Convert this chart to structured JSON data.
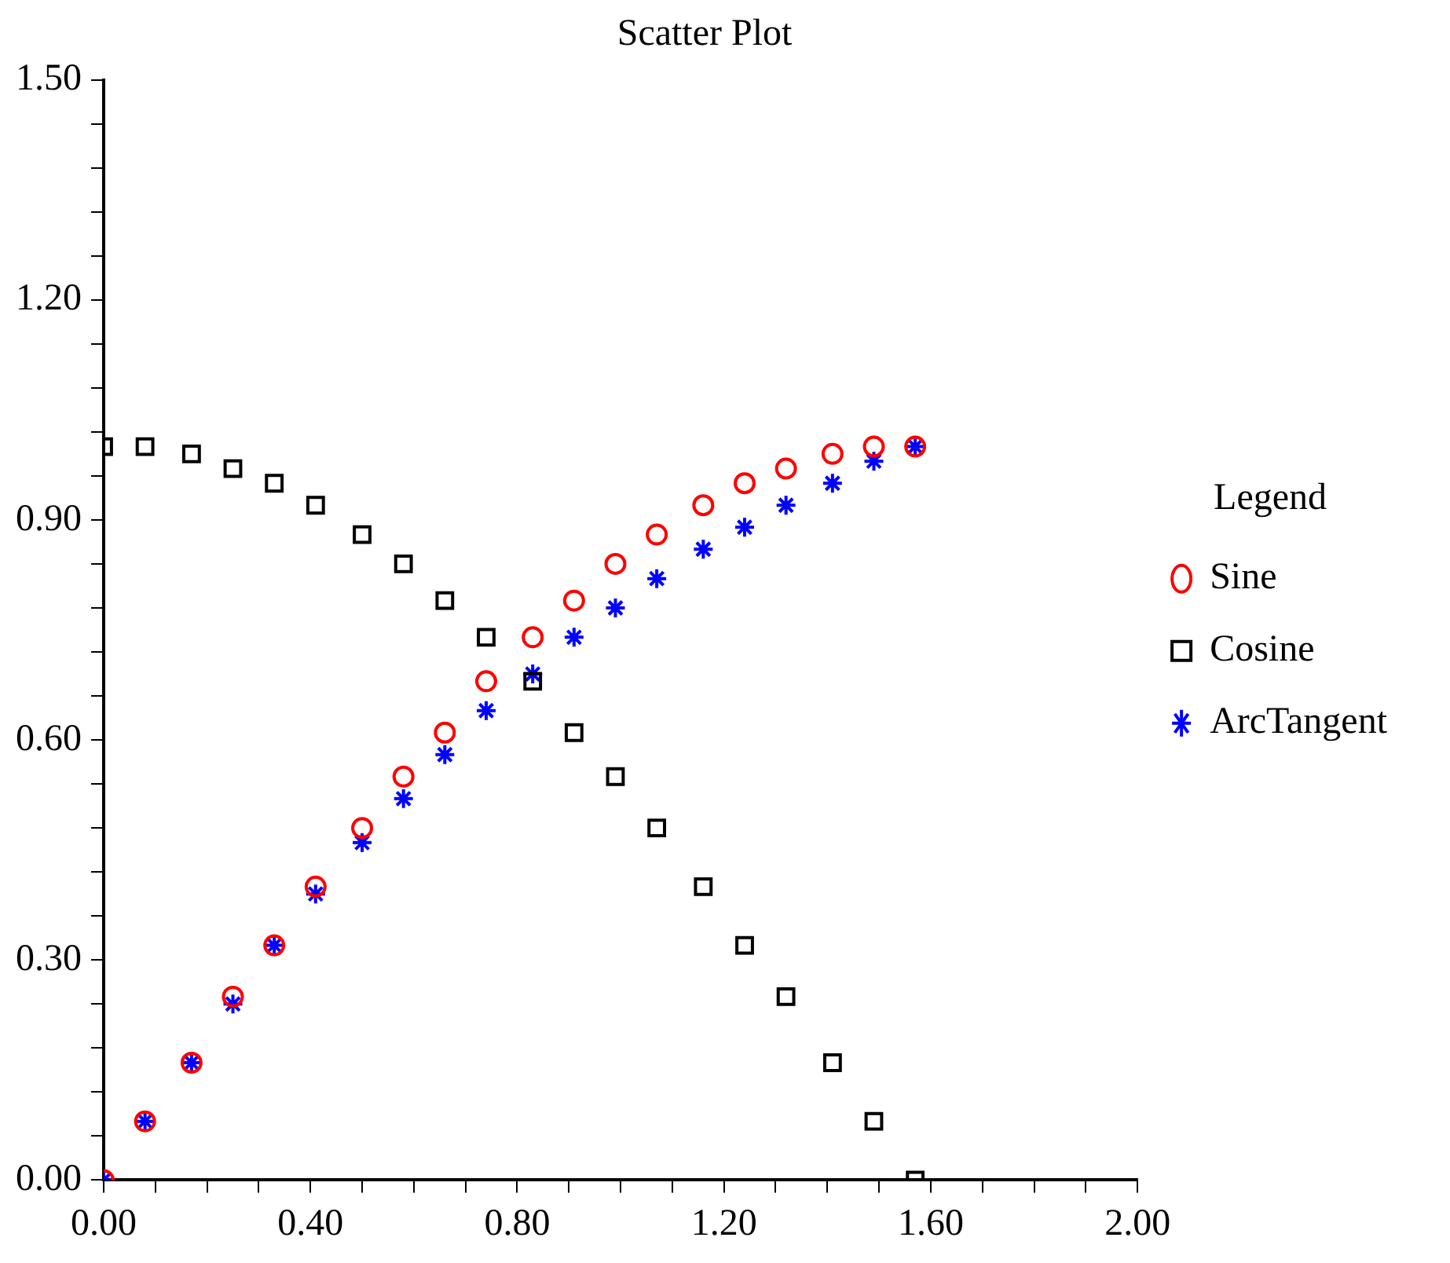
{
  "chart_data": {
    "type": "scatter",
    "title": "Scatter Plot",
    "legend_title": "Legend",
    "legend": "right",
    "grid": false,
    "x": [
      0,
      0.08,
      0.17,
      0.25,
      0.33,
      0.41,
      0.5,
      0.58,
      0.66,
      0.74,
      0.83,
      0.91,
      0.99,
      1.07,
      1.16,
      1.24,
      1.32,
      1.41,
      1.49,
      1.57
    ],
    "series": [
      {
        "name": "Sine",
        "color": "#ff0000",
        "marker": "circle",
        "values": [
          0,
          0.08,
          0.16,
          0.25,
          0.32,
          0.4,
          0.48,
          0.55,
          0.61,
          0.68,
          0.74,
          0.79,
          0.84,
          0.88,
          0.92,
          0.95,
          0.97,
          0.99,
          1.0,
          1.0
        ]
      },
      {
        "name": "Cosine",
        "color": "#000000",
        "marker": "square",
        "values": [
          1.0,
          1.0,
          0.99,
          0.97,
          0.95,
          0.92,
          0.88,
          0.84,
          0.79,
          0.74,
          0.68,
          0.61,
          0.55,
          0.48,
          0.4,
          0.32,
          0.25,
          0.16,
          0.08,
          0
        ]
      },
      {
        "name": "ArcTangent",
        "color": "#0000ff",
        "marker": "cross",
        "values": [
          0,
          0.08,
          0.16,
          0.24,
          0.32,
          0.39,
          0.46,
          0.52,
          0.58,
          0.64,
          0.69,
          0.74,
          0.78,
          0.82,
          0.86,
          0.89,
          0.92,
          0.95,
          0.98,
          1.0
        ]
      }
    ],
    "xlim": [
      0,
      2
    ],
    "ylim": [
      0,
      1.5
    ],
    "xticks": [
      {
        "value": 0,
        "label": "0.00"
      },
      {
        "value": 0.1,
        "label": null
      },
      {
        "value": 0.2,
        "label": null
      },
      {
        "value": 0.3,
        "label": null
      },
      {
        "value": 0.4,
        "label": "0.40"
      },
      {
        "value": 0.5,
        "label": null
      },
      {
        "value": 0.6,
        "label": null
      },
      {
        "value": 0.7,
        "label": null
      },
      {
        "value": 0.8,
        "label": "0.80"
      },
      {
        "value": 0.9,
        "label": null
      },
      {
        "value": 1.0,
        "label": null
      },
      {
        "value": 1.1,
        "label": null
      },
      {
        "value": 1.2,
        "label": "1.20"
      },
      {
        "value": 1.3,
        "label": null
      },
      {
        "value": 1.4,
        "label": null
      },
      {
        "value": 1.5,
        "label": null
      },
      {
        "value": 1.6,
        "label": "1.60"
      },
      {
        "value": 1.7,
        "label": null
      },
      {
        "value": 1.8,
        "label": null
      },
      {
        "value": 1.9,
        "label": null
      },
      {
        "value": 2.0,
        "label": "2.00"
      }
    ],
    "yticks": [
      {
        "value": 0,
        "label": "0.00"
      },
      {
        "value": 0.06,
        "label": null
      },
      {
        "value": 0.12,
        "label": null
      },
      {
        "value": 0.18,
        "label": null
      },
      {
        "value": 0.24,
        "label": null
      },
      {
        "value": 0.3,
        "label": "0.30"
      },
      {
        "value": 0.36,
        "label": null
      },
      {
        "value": 0.42,
        "label": null
      },
      {
        "value": 0.48,
        "label": null
      },
      {
        "value": 0.54,
        "label": null
      },
      {
        "value": 0.6,
        "label": "0.60"
      },
      {
        "value": 0.66,
        "label": null
      },
      {
        "value": 0.72,
        "label": null
      },
      {
        "value": 0.78,
        "label": null
      },
      {
        "value": 0.84,
        "label": null
      },
      {
        "value": 0.9,
        "label": "0.90"
      },
      {
        "value": 0.96,
        "label": null
      },
      {
        "value": 1.02,
        "label": null
      },
      {
        "value": 1.08,
        "label": null
      },
      {
        "value": 1.14,
        "label": null
      },
      {
        "value": 1.2,
        "label": "1.20"
      },
      {
        "value": 1.26,
        "label": null
      },
      {
        "value": 1.32,
        "label": null
      },
      {
        "value": 1.38,
        "label": null
      },
      {
        "value": 1.44,
        "label": null
      },
      {
        "value": 1.5,
        "label": "1.50"
      }
    ]
  }
}
